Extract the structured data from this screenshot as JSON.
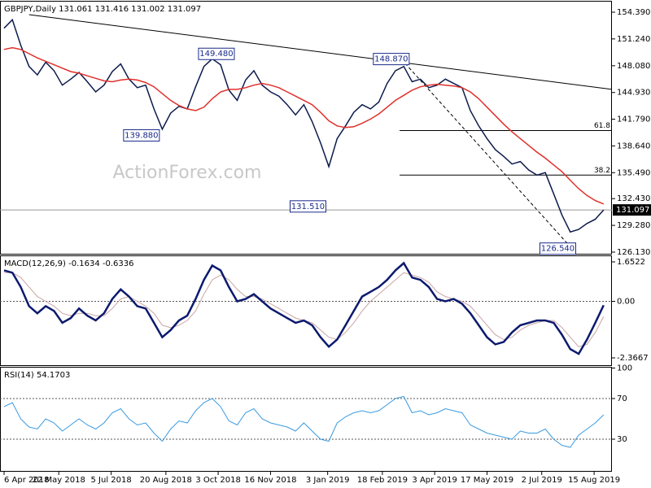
{
  "chart_data": [
    {
      "type": "line",
      "title": "GBPJPY,Daily  131.061 131.416 131.002 131.097",
      "watermark": "ActionForex.com",
      "x": [
        0,
        1,
        2,
        3,
        4,
        5,
        6,
        7,
        8,
        9,
        10,
        11,
        12,
        13,
        14,
        15,
        16,
        17,
        18,
        19,
        20,
        21,
        22,
        23,
        24,
        25,
        26,
        27,
        28,
        29,
        30,
        31,
        32,
        33,
        34,
        35,
        36,
        37,
        38,
        39,
        40,
        41,
        42,
        43,
        44,
        45,
        46,
        47,
        48,
        49,
        50,
        51,
        52,
        53,
        54,
        55,
        56,
        57,
        58,
        59,
        60,
        61,
        62,
        63,
        64,
        65,
        66,
        67,
        68,
        69,
        70,
        71,
        72
      ],
      "xlim": [
        -0.49,
        73
      ],
      "ylim": [
        125.84,
        155.73
      ],
      "yticks": [
        {
          "value": 154.39,
          "label": "154.390"
        },
        {
          "value": 151.24,
          "label": "151.240"
        },
        {
          "value": 148.08,
          "label": "148.080"
        },
        {
          "value": 144.93,
          "label": "144.930"
        },
        {
          "value": 141.79,
          "label": "141.790"
        },
        {
          "value": 138.64,
          "label": "138.640"
        },
        {
          "value": 135.49,
          "label": "135.490"
        },
        {
          "value": 132.43,
          "label": "132.430"
        },
        {
          "value": 129.28,
          "label": "129.280"
        },
        {
          "value": 126.13,
          "label": "126.130"
        }
      ],
      "series": [
        {
          "color": "#0d1b4c",
          "values": [
            152.5,
            153.5,
            150.5,
            148.0,
            147.0,
            148.5,
            147.5,
            145.8,
            146.5,
            147.3,
            146.2,
            145.0,
            145.8,
            147.4,
            148.3,
            146.5,
            145.5,
            145.8,
            143.0,
            140.6,
            142.5,
            143.3,
            143.0,
            145.6,
            148.0,
            148.9,
            148.2,
            145.2,
            144.0,
            146.4,
            147.5,
            145.8,
            145.0,
            144.5,
            143.5,
            142.3,
            143.5,
            141.5,
            139.0,
            136.2,
            139.5,
            141.0,
            142.6,
            143.5,
            143.0,
            143.8,
            146.0,
            147.5,
            148.0,
            146.2,
            146.5,
            145.5,
            145.8,
            146.5,
            146.0,
            145.5,
            142.8,
            141.0,
            139.5,
            138.2,
            137.4,
            136.5,
            136.8,
            135.8,
            135.2,
            135.5,
            133.0,
            130.5,
            128.5,
            128.8,
            129.5,
            130.0,
            131.1
          ]
        },
        {
          "color": "#e0302b",
          "values": [
            150.0,
            150.2,
            150.0,
            149.5,
            149.0,
            148.6,
            148.2,
            147.8,
            147.4,
            147.2,
            146.9,
            146.6,
            146.3,
            146.2,
            146.4,
            146.5,
            146.4,
            146.1,
            145.6,
            144.8,
            144.0,
            143.4,
            143.0,
            142.8,
            143.2,
            144.2,
            145.0,
            145.3,
            145.3,
            145.5,
            145.8,
            146.0,
            145.8,
            145.5,
            145.0,
            144.5,
            144.0,
            143.5,
            142.6,
            141.6,
            141.0,
            140.8,
            140.9,
            141.3,
            141.8,
            142.4,
            143.2,
            144.0,
            144.6,
            145.2,
            145.6,
            145.8,
            145.9,
            145.8,
            145.7,
            145.5,
            145.0,
            144.2,
            143.2,
            142.2,
            141.2,
            140.3,
            139.5,
            138.7,
            137.9,
            137.2,
            136.4,
            135.6,
            134.6,
            133.6,
            132.8,
            132.2,
            131.8
          ]
        }
      ],
      "annotations": [
        {
          "label": "149.480",
          "value": 149.48,
          "x": 25.5
        },
        {
          "label": "139.880",
          "value": 139.88,
          "x": 16.5
        },
        {
          "label": "131.510",
          "value": 131.51,
          "x": 36.5
        },
        {
          "label": "148.870",
          "value": 148.87,
          "x": 46.5
        },
        {
          "label": "126.540",
          "value": 126.54,
          "x": 66.5
        }
      ],
      "fib_levels": [
        {
          "label": "61.8",
          "price": 140.45,
          "x_from": 47.5
        },
        {
          "label": "38.2",
          "price": 135.2,
          "x_from": 47.5
        }
      ],
      "trendline": {
        "x": [
          3,
          73
        ],
        "y": [
          154.1,
          145.3
        ]
      },
      "projection": {
        "x": [
          47.7,
          68.2
        ],
        "y": [
          148.87,
          126.54
        ]
      },
      "last": {
        "value": 131.097,
        "label": "131.097"
      }
    },
    {
      "type": "line",
      "title": "MACD(12,26,9) -0.1634 -0.6336",
      "x": [
        0,
        1,
        2,
        3,
        4,
        5,
        6,
        7,
        8,
        9,
        10,
        11,
        12,
        13,
        14,
        15,
        16,
        17,
        18,
        19,
        20,
        21,
        22,
        23,
        24,
        25,
        26,
        27,
        28,
        29,
        30,
        31,
        32,
        33,
        34,
        35,
        36,
        37,
        38,
        39,
        40,
        41,
        42,
        43,
        44,
        45,
        46,
        47,
        48,
        49,
        50,
        51,
        52,
        53,
        54,
        55,
        56,
        57,
        58,
        59,
        60,
        61,
        62,
        63,
        64,
        65,
        66,
        67,
        68,
        69,
        70,
        71,
        72
      ],
      "xlim": [
        -0.49,
        73
      ],
      "ylim": [
        -2.707,
        1.925
      ],
      "yticks": [
        1.6522,
        {
          "value": 0,
          "label": "0.00"
        },
        -2.3667
      ],
      "levels": [
        0
      ],
      "series": [
        {
          "color": "#c9a4a4",
          "width": 1,
          "values": [
            1.2,
            1.2,
            1.0,
            0.6,
            0.2,
            0.0,
            -0.2,
            -0.5,
            -0.6,
            -0.5,
            -0.5,
            -0.6,
            -0.6,
            -0.3,
            0.1,
            0.2,
            0.0,
            -0.2,
            -0.5,
            -1.0,
            -1.1,
            -1.0,
            -0.8,
            -0.4,
            0.3,
            0.9,
            1.1,
            0.9,
            0.5,
            0.2,
            0.2,
            0.1,
            -0.1,
            -0.3,
            -0.5,
            -0.7,
            -0.8,
            -0.9,
            -1.2,
            -1.5,
            -1.6,
            -1.3,
            -0.9,
            -0.4,
            0.0,
            0.3,
            0.6,
            0.9,
            1.2,
            1.1,
            1.0,
            0.8,
            0.4,
            0.2,
            0.1,
            0.0,
            -0.2,
            -0.6,
            -1.0,
            -1.4,
            -1.6,
            -1.5,
            -1.2,
            -1.0,
            -0.9,
            -0.8,
            -0.8,
            -1.1,
            -1.5,
            -1.9,
            -1.8,
            -1.3,
            -0.6336
          ]
        },
        {
          "color": "#0c1a6e",
          "width": 2.5,
          "values": [
            1.3,
            1.2,
            0.6,
            -0.2,
            -0.5,
            -0.2,
            -0.4,
            -0.9,
            -0.7,
            -0.3,
            -0.6,
            -0.8,
            -0.5,
            0.1,
            0.5,
            0.2,
            -0.2,
            -0.3,
            -0.9,
            -1.5,
            -1.2,
            -0.8,
            -0.6,
            0.1,
            0.9,
            1.5,
            1.3,
            0.6,
            0.0,
            0.1,
            0.3,
            0.0,
            -0.3,
            -0.5,
            -0.7,
            -0.9,
            -0.8,
            -1.0,
            -1.5,
            -1.9,
            -1.6,
            -1.0,
            -0.4,
            0.2,
            0.4,
            0.6,
            0.9,
            1.3,
            1.6,
            1.0,
            0.9,
            0.6,
            0.1,
            0.0,
            0.1,
            -0.1,
            -0.5,
            -1.0,
            -1.5,
            -1.8,
            -1.7,
            -1.3,
            -1.0,
            -0.9,
            -0.8,
            -0.8,
            -0.9,
            -1.4,
            -2.0,
            -2.2,
            -1.6,
            -0.9,
            -0.1634
          ]
        }
      ]
    },
    {
      "type": "line",
      "title": "RSI(14) 54.1703",
      "x": [
        0,
        1,
        2,
        3,
        4,
        5,
        6,
        7,
        8,
        9,
        10,
        11,
        12,
        13,
        14,
        15,
        16,
        17,
        18,
        19,
        20,
        21,
        22,
        23,
        24,
        25,
        26,
        27,
        28,
        29,
        30,
        31,
        32,
        33,
        34,
        35,
        36,
        37,
        38,
        39,
        40,
        41,
        42,
        43,
        44,
        45,
        46,
        47,
        48,
        49,
        50,
        51,
        52,
        53,
        54,
        55,
        56,
        57,
        58,
        59,
        60,
        61,
        62,
        63,
        64,
        65,
        66,
        67,
        68,
        69,
        70,
        71,
        72
      ],
      "xlim": [
        -0.49,
        73
      ],
      "ylim": [
        -2,
        101.2
      ],
      "yticks": [
        100,
        70,
        30
      ],
      "levels": [
        70,
        30
      ],
      "xticks": [
        {
          "value": 0,
          "label": "6 Apr 2018"
        },
        {
          "value": 6.57,
          "label": "22 May 2018"
        },
        {
          "value": 12.86,
          "label": "5 Jul 2018"
        },
        {
          "value": 19.43,
          "label": "20 Aug 2018"
        },
        {
          "value": 25.71,
          "label": "3 Oct 2018"
        },
        {
          "value": 32,
          "label": "16 Nov 2018"
        },
        {
          "value": 38.86,
          "label": "3 Jan 2019"
        },
        {
          "value": 45.43,
          "label": "18 Feb 2019"
        },
        {
          "value": 51.71,
          "label": "3 Apr 2019"
        },
        {
          "value": 58,
          "label": "17 May 2019"
        },
        {
          "value": 64.57,
          "label": "2 Jul 2019"
        },
        {
          "value": 70.86,
          "label": "15 Aug 2019"
        }
      ],
      "series": [
        {
          "color": "#3a9be0",
          "width": 1,
          "values": [
            62,
            66,
            50,
            42,
            40,
            50,
            46,
            38,
            44,
            50,
            44,
            40,
            46,
            56,
            60,
            50,
            44,
            46,
            36,
            28,
            40,
            48,
            46,
            58,
            66,
            70,
            62,
            48,
            44,
            56,
            60,
            50,
            46,
            44,
            42,
            38,
            46,
            38,
            30,
            28,
            46,
            52,
            56,
            58,
            56,
            58,
            64,
            70,
            72,
            56,
            58,
            54,
            56,
            60,
            58,
            56,
            44,
            40,
            36,
            34,
            32,
            30,
            38,
            36,
            36,
            40,
            30,
            24,
            22,
            34,
            40,
            46,
            54
          ]
        }
      ]
    }
  ]
}
